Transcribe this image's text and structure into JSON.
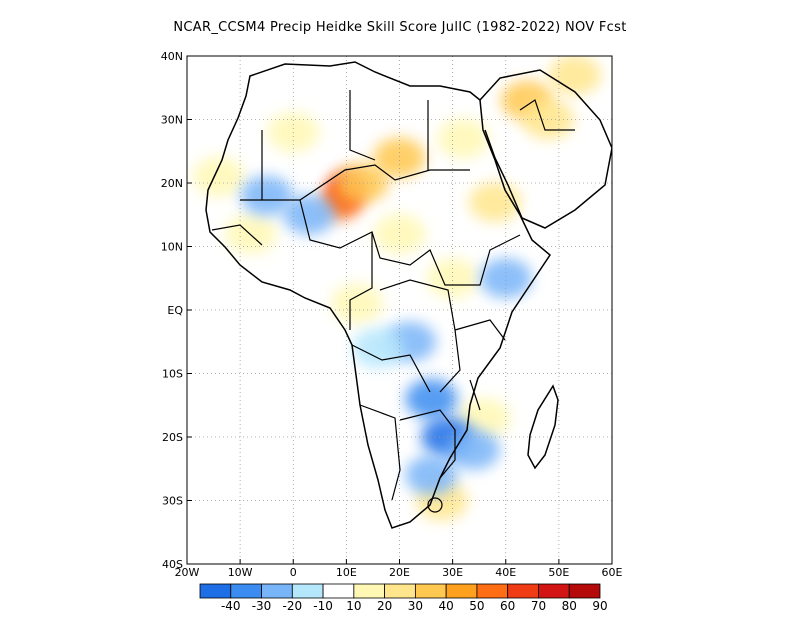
{
  "title": "NCAR_CCSM4 Precip Heidke Skill Score JulIC (1982-2022) NOV Fcst",
  "map": {
    "lon_range": [
      -20,
      60
    ],
    "lat_range": [
      -40,
      40
    ],
    "lon_ticks": [
      {
        "value": -20,
        "label": "20W"
      },
      {
        "value": -10,
        "label": "10W"
      },
      {
        "value": 0,
        "label": "0"
      },
      {
        "value": 10,
        "label": "10E"
      },
      {
        "value": 20,
        "label": "20E"
      },
      {
        "value": 30,
        "label": "30E"
      },
      {
        "value": 40,
        "label": "40E"
      },
      {
        "value": 50,
        "label": "50E"
      },
      {
        "value": 60,
        "label": "60E"
      }
    ],
    "lat_ticks": [
      {
        "value": 40,
        "label": "40N"
      },
      {
        "value": 30,
        "label": "30N"
      },
      {
        "value": 20,
        "label": "20N"
      },
      {
        "value": 10,
        "label": "10N"
      },
      {
        "value": 0,
        "label": "EQ"
      },
      {
        "value": -10,
        "label": "10S"
      },
      {
        "value": -20,
        "label": "20S"
      },
      {
        "value": -30,
        "label": "30S"
      },
      {
        "value": -40,
        "label": "40S"
      }
    ],
    "grid": "dotted",
    "skill_regions": [
      {
        "lon": 10,
        "lat": 19,
        "level": 70
      },
      {
        "lon": 9,
        "lat": 17,
        "level": 60
      },
      {
        "lon": 13,
        "lat": 20,
        "level": 40
      },
      {
        "lon": 20,
        "lat": 24,
        "level": 40
      },
      {
        "lon": 38,
        "lat": 17,
        "level": 30
      },
      {
        "lon": 44,
        "lat": 33,
        "level": 40
      },
      {
        "lon": 48,
        "lat": 30,
        "level": 30
      },
      {
        "lon": 53,
        "lat": 37,
        "level": 30
      },
      {
        "lon": 0,
        "lat": 28,
        "level": 20
      },
      {
        "lon": 32,
        "lat": 27,
        "level": 20
      },
      {
        "lon": -14,
        "lat": 21,
        "level": 20
      },
      {
        "lon": -8,
        "lat": 12,
        "level": 20
      },
      {
        "lon": 20,
        "lat": 12,
        "level": 20
      },
      {
        "lon": 30,
        "lat": 5,
        "level": 20
      },
      {
        "lon": 12,
        "lat": 1,
        "level": 20
      },
      {
        "lon": 28,
        "lat": -30,
        "level": 30
      },
      {
        "lon": 36,
        "lat": -17,
        "level": 20
      },
      {
        "lon": -5,
        "lat": 18,
        "level": -20
      },
      {
        "lon": 3,
        "lat": 15,
        "level": -20
      },
      {
        "lon": 22,
        "lat": -5,
        "level": -20
      },
      {
        "lon": 26,
        "lat": -14,
        "level": -30
      },
      {
        "lon": 29,
        "lat": -20,
        "level": -40
      },
      {
        "lon": 34,
        "lat": -22,
        "level": -20
      },
      {
        "lon": 40,
        "lat": 5,
        "level": -20
      },
      {
        "lon": 16,
        "lat": -6,
        "level": -10
      },
      {
        "lon": 26,
        "lat": -26,
        "level": -20
      }
    ]
  },
  "colorbar": {
    "labels": [
      "-40",
      "-30",
      "-20",
      "-10",
      "10",
      "20",
      "30",
      "40",
      "50",
      "60",
      "70",
      "80",
      "90"
    ],
    "colors": [
      "#1e6ee6",
      "#3a8cf0",
      "#78b4f8",
      "#b4e6fc",
      "#ffffff",
      "#fff8b4",
      "#ffe68c",
      "#ffc850",
      "#ffa01e",
      "#ff6e14",
      "#f03c14",
      "#d21414",
      "#b40a0a"
    ]
  }
}
